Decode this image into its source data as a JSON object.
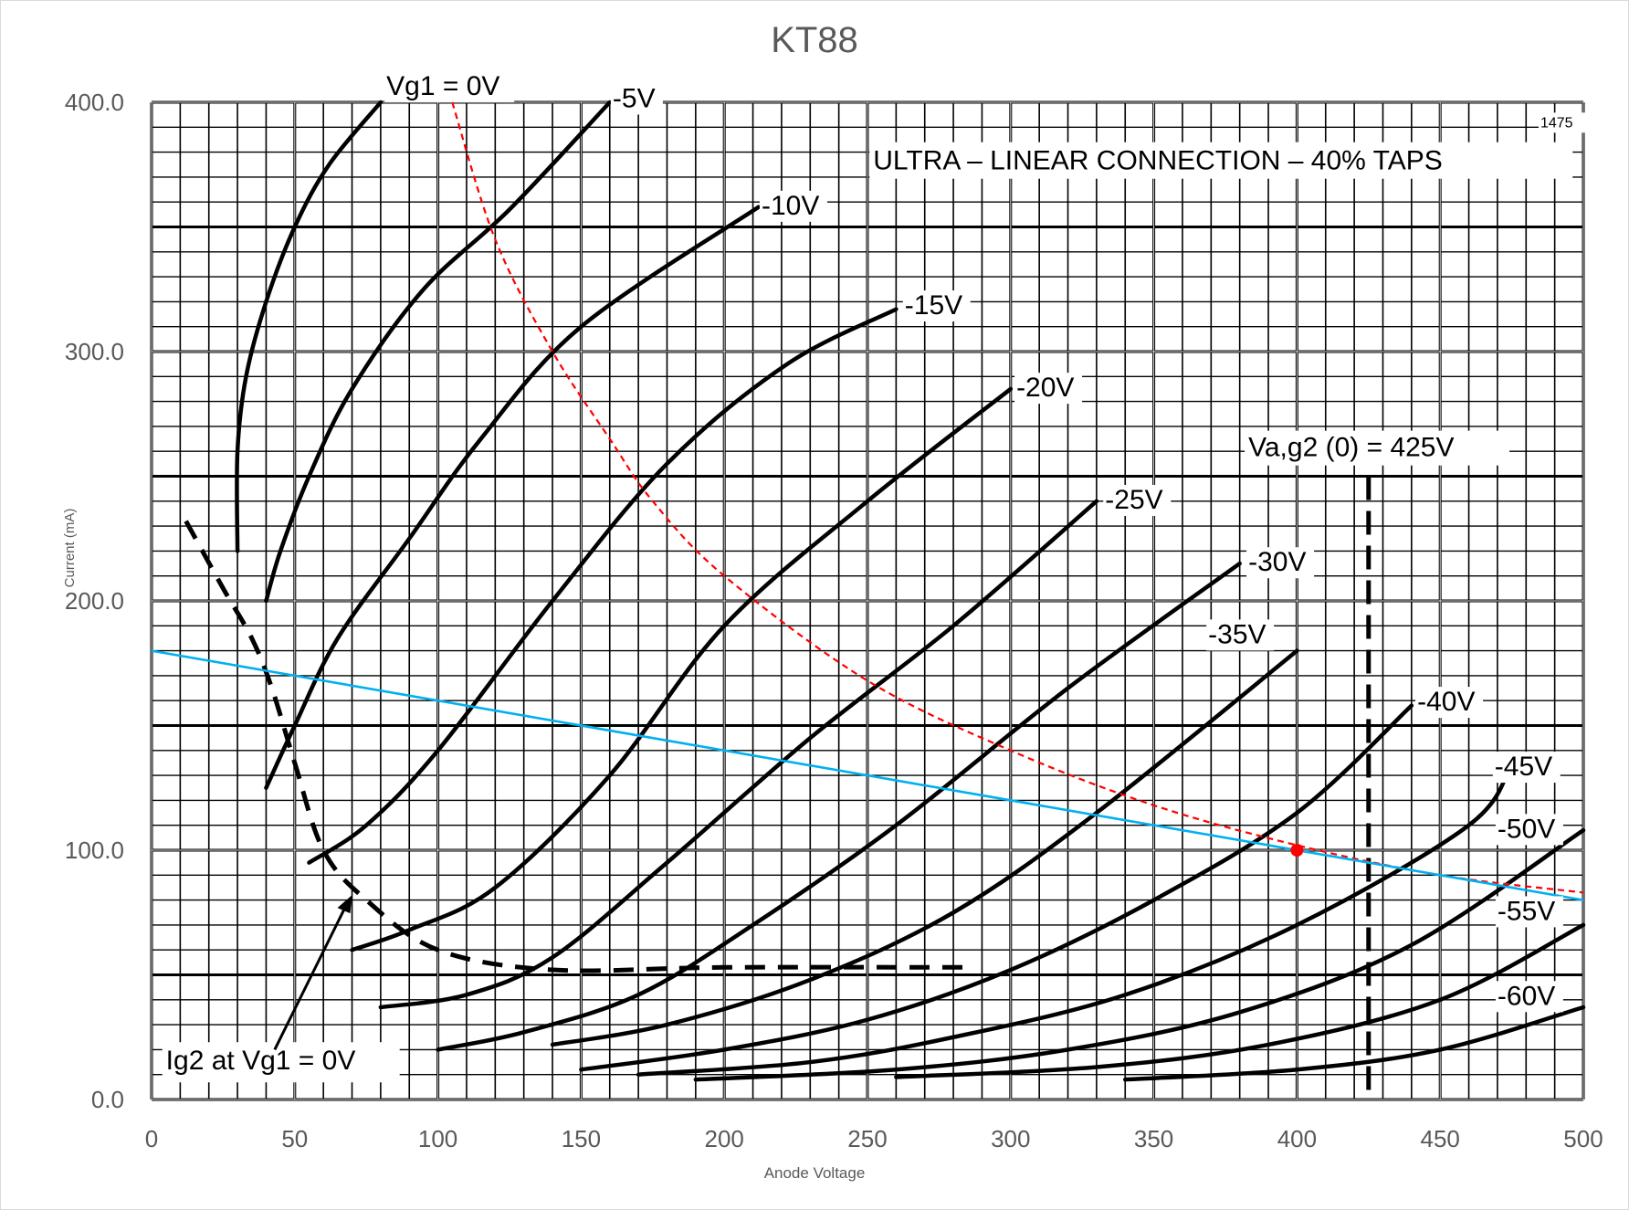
{
  "chart_data": {
    "type": "line",
    "title": "KT88",
    "xlabel": "Anode Voltage",
    "ylabel": "Current (mA)",
    "xlim": [
      0,
      500
    ],
    "ylim": [
      0,
      400
    ],
    "x_ticks": [
      "0",
      "50",
      "100",
      "150",
      "200",
      "250",
      "300",
      "350",
      "400",
      "450",
      "500"
    ],
    "y_ticks": [
      "0.0",
      "100.0",
      "200.0",
      "300.0",
      "400.0"
    ],
    "grid": true,
    "legend": "none",
    "background_annotations": {
      "header": "ULTRA – LINEAR  CONNECTION – 40% TAPS",
      "corner_code": "1475",
      "va_g2_label": "Va,g2 (0) = 425V",
      "ig2_label": "Ig2 at Vg1 = 0V"
    },
    "curve_labels": [
      "Vg1 = 0V",
      "-5V",
      "-10V",
      "-15V",
      "-20V",
      "-25V",
      "-30V",
      "-35V",
      "-40V",
      "-45V",
      "-50V",
      "-55V",
      "-60V"
    ],
    "tube_curves": [
      {
        "label": "Vg1 = 0V",
        "points": [
          [
            30,
            220
          ],
          [
            30,
            260
          ],
          [
            33,
            290
          ],
          [
            40,
            320
          ],
          [
            50,
            350
          ],
          [
            62,
            375
          ],
          [
            80,
            400
          ]
        ]
      },
      {
        "label": "-5V",
        "points": [
          [
            40,
            200
          ],
          [
            45,
            220
          ],
          [
            55,
            250
          ],
          [
            70,
            285
          ],
          [
            95,
            325
          ],
          [
            125,
            357
          ],
          [
            160,
            400
          ]
        ]
      },
      {
        "label": "-10V",
        "points": [
          [
            40,
            125
          ],
          [
            50,
            150
          ],
          [
            65,
            185
          ],
          [
            90,
            225
          ],
          [
            115,
            265
          ],
          [
            150,
            310
          ],
          [
            212,
            358
          ]
        ]
      },
      {
        "label": "-15V",
        "points": [
          [
            55,
            95
          ],
          [
            75,
            110
          ],
          [
            100,
            140
          ],
          [
            140,
            200
          ],
          [
            180,
            255
          ],
          [
            222,
            295
          ],
          [
            260,
            317
          ]
        ]
      },
      {
        "label": "-20V",
        "points": [
          [
            70,
            60
          ],
          [
            90,
            68
          ],
          [
            120,
            85
          ],
          [
            160,
            130
          ],
          [
            200,
            190
          ],
          [
            250,
            240
          ],
          [
            300,
            285
          ]
        ]
      },
      {
        "label": "-25V",
        "points": [
          [
            80,
            37
          ],
          [
            110,
            42
          ],
          [
            140,
            57
          ],
          [
            180,
            95
          ],
          [
            230,
            145
          ],
          [
            280,
            190
          ],
          [
            330,
            240
          ]
        ]
      },
      {
        "label": "-30V",
        "points": [
          [
            100,
            20
          ],
          [
            130,
            27
          ],
          [
            170,
            42
          ],
          [
            210,
            70
          ],
          [
            260,
            110
          ],
          [
            320,
            165
          ],
          [
            380,
            215
          ]
        ]
      },
      {
        "label": "-35V",
        "points": [
          [
            140,
            22
          ],
          [
            180,
            30
          ],
          [
            230,
            48
          ],
          [
            280,
            75
          ],
          [
            330,
            115
          ],
          [
            400,
            180
          ]
        ]
      },
      {
        "label": "-40V",
        "points": [
          [
            150,
            12
          ],
          [
            200,
            20
          ],
          [
            250,
            32
          ],
          [
            300,
            52
          ],
          [
            350,
            80
          ],
          [
            400,
            115
          ],
          [
            440,
            158
          ]
        ]
      },
      {
        "label": "-45V",
        "points": [
          [
            170,
            10
          ],
          [
            230,
            15
          ],
          [
            280,
            25
          ],
          [
            340,
            42
          ],
          [
            400,
            70
          ],
          [
            460,
            110
          ],
          [
            475,
            135
          ]
        ]
      },
      {
        "label": "-50V",
        "points": [
          [
            190,
            8
          ],
          [
            260,
            12
          ],
          [
            320,
            20
          ],
          [
            380,
            35
          ],
          [
            440,
            62
          ],
          [
            500,
            108
          ]
        ]
      },
      {
        "label": "-55V",
        "points": [
          [
            260,
            9
          ],
          [
            330,
            13
          ],
          [
            390,
            22
          ],
          [
            450,
            40
          ],
          [
            500,
            70
          ]
        ]
      },
      {
        "label": "-60V",
        "points": [
          [
            340,
            8
          ],
          [
            400,
            12
          ],
          [
            450,
            20
          ],
          [
            500,
            37
          ]
        ]
      }
    ],
    "ig2_curve_points": [
      [
        12,
        232
      ],
      [
        25,
        205
      ],
      [
        35,
        185
      ],
      [
        42,
        165
      ],
      [
        50,
        135
      ],
      [
        60,
        100
      ],
      [
        75,
        80
      ],
      [
        100,
        60
      ],
      [
        140,
        52
      ],
      [
        200,
        53
      ],
      [
        285,
        53
      ]
    ],
    "va_g2_line_x": 425,
    "load_line": {
      "points": [
        [
          0,
          180
        ],
        [
          500,
          80
        ]
      ],
      "color": "#00b0f0"
    },
    "power_curve": {
      "color": "#ff0000",
      "points": [
        [
          105,
          400
        ],
        [
          120,
          345
        ],
        [
          140,
          300
        ],
        [
          160,
          265
        ],
        [
          175,
          240
        ],
        [
          200,
          210
        ],
        [
          250,
          168
        ],
        [
          300,
          140
        ],
        [
          350,
          118
        ],
        [
          400,
          102
        ],
        [
          450,
          90
        ],
        [
          500,
          83
        ]
      ]
    },
    "operating_point": {
      "x": 400,
      "y": 100,
      "color": "#ff0000"
    }
  }
}
